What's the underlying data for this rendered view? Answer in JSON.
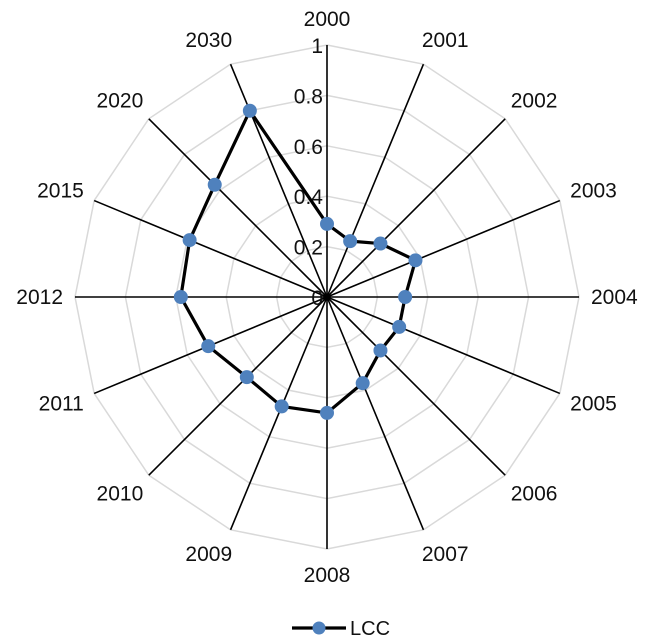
{
  "chart_data": {
    "type": "radar",
    "categories": [
      "2000",
      "2001",
      "2002",
      "2003",
      "2004",
      "2005",
      "2006",
      "2007",
      "2008",
      "2009",
      "2010",
      "2011",
      "2012",
      "2015",
      "2020",
      "2030"
    ],
    "series": [
      {
        "name": "LCC",
        "values": [
          0.29,
          0.24,
          0.3,
          0.38,
          0.31,
          0.31,
          0.3,
          0.37,
          0.46,
          0.47,
          0.45,
          0.51,
          0.58,
          0.59,
          0.63,
          0.8
        ]
      }
    ],
    "ylim": [
      0,
      1
    ],
    "ticks": [
      "0",
      "0.2",
      "0.4",
      "0.6",
      "0.8",
      "1"
    ],
    "grid": true,
    "legend_position": "bottom",
    "colors": {
      "series_line": "#000000",
      "marker": "#4f81bd",
      "grid": "#d9d9d9",
      "spoke": "#000000"
    }
  }
}
